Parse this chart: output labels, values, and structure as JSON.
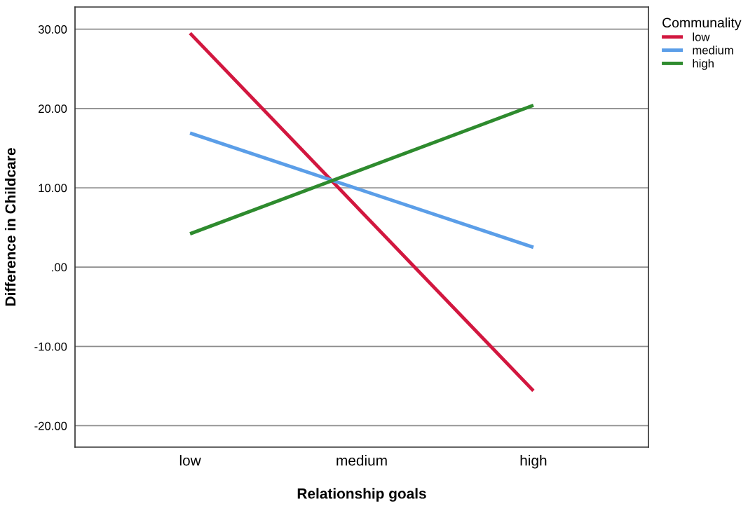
{
  "chart_data": {
    "type": "line",
    "xlabel": "Relationship goals",
    "ylabel": "Difference in Childcare",
    "legend_title": "Communality",
    "categories": [
      "low",
      "medium",
      "high"
    ],
    "series": [
      {
        "name": "low",
        "color": "#d2173f",
        "values": [
          29.5,
          null,
          -15.6
        ]
      },
      {
        "name": "medium",
        "color": "#5b9ee8",
        "values": [
          16.9,
          null,
          2.5
        ]
      },
      {
        "name": "high",
        "color": "#2e8b2e",
        "values": [
          4.2,
          null,
          20.4
        ]
      }
    ],
    "ylim": [
      -22.7,
      32.8
    ],
    "yticks": [
      {
        "value": -20,
        "label": "-20.00"
      },
      {
        "value": -10,
        "label": "-10.00"
      },
      {
        "value": 0,
        "label": ".00"
      },
      {
        "value": 10,
        "label": "10.00"
      },
      {
        "value": 20,
        "label": "20.00"
      },
      {
        "value": 30,
        "label": "30.00"
      }
    ],
    "grid": "y",
    "legend": "top right",
    "marker": "none",
    "line_style": "solid"
  }
}
